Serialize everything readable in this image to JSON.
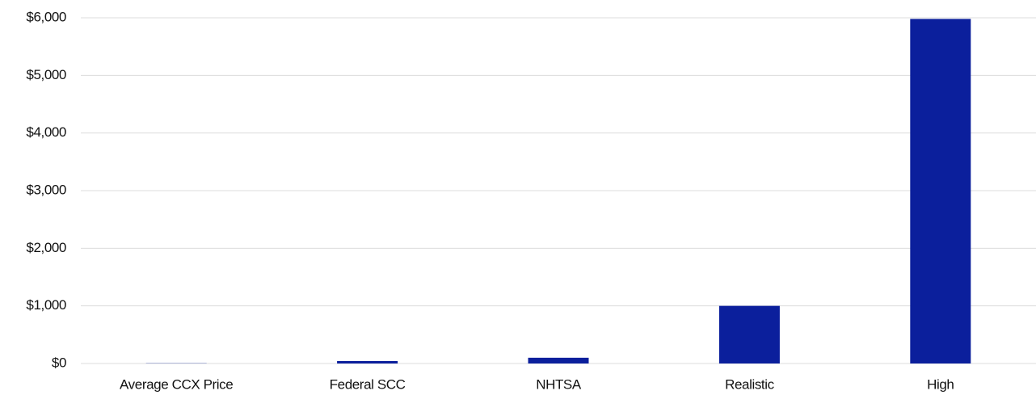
{
  "chart_data": {
    "type": "bar",
    "categories": [
      "Average CCX Price",
      "Federal SCC",
      "NHTSA",
      "Realistic",
      "High"
    ],
    "values": [
      4,
      42,
      100,
      1000,
      5980
    ],
    "color": "#0b1f9c",
    "ylim": [
      0,
      6000
    ],
    "yticks": [
      {
        "value": 0,
        "label": "$0"
      },
      {
        "value": 1000,
        "label": "$1,000"
      },
      {
        "value": 2000,
        "label": "$2,000"
      },
      {
        "value": 3000,
        "label": "$3,000"
      },
      {
        "value": 4000,
        "label": "$4,000"
      },
      {
        "value": 5000,
        "label": "$5,000"
      },
      {
        "value": 6000,
        "label": "$6,000"
      }
    ],
    "grid": true
  }
}
